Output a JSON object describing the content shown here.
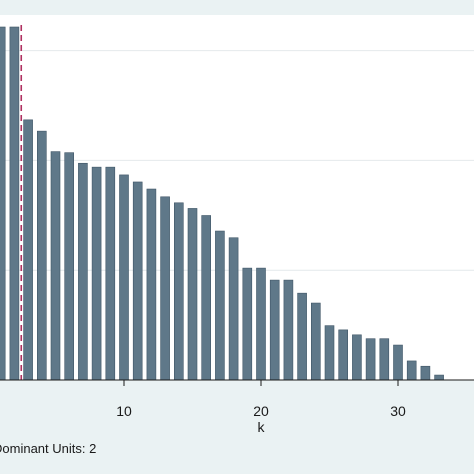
{
  "chart_data": {
    "type": "bar",
    "x": [
      1,
      2,
      3,
      4,
      5,
      6,
      7,
      8,
      9,
      10,
      11,
      12,
      13,
      14,
      15,
      16,
      17,
      18,
      19,
      20,
      21,
      22,
      23,
      24,
      25,
      26,
      27,
      28,
      29,
      30,
      31,
      32,
      33
    ],
    "values": [
      1.0,
      1.0,
      0.737,
      0.705,
      0.647,
      0.644,
      0.614,
      0.603,
      0.603,
      0.581,
      0.561,
      0.541,
      0.519,
      0.502,
      0.486,
      0.466,
      0.422,
      0.403,
      0.317,
      0.317,
      0.283,
      0.283,
      0.246,
      0.218,
      0.154,
      0.142,
      0.128,
      0.117,
      0.117,
      0.099,
      0.054,
      0.039,
      0.014
    ],
    "xlabel": "k",
    "ylabel": "",
    "xticks": [
      10,
      20,
      30
    ],
    "xlim": [
      0,
      35
    ],
    "ylim": [
      0,
      1.0
    ],
    "y_gridlines": [
      0.311,
      0.622,
      0.933
    ],
    "cutoff_line": {
      "x": 2.5,
      "style": "dashed",
      "color": "#b03060"
    },
    "note": "Dominant Units: 2",
    "bar_color": "#5f7889",
    "background_color": "#eaf2f3",
    "plot_background_color": "#ffffff",
    "grid": true
  }
}
